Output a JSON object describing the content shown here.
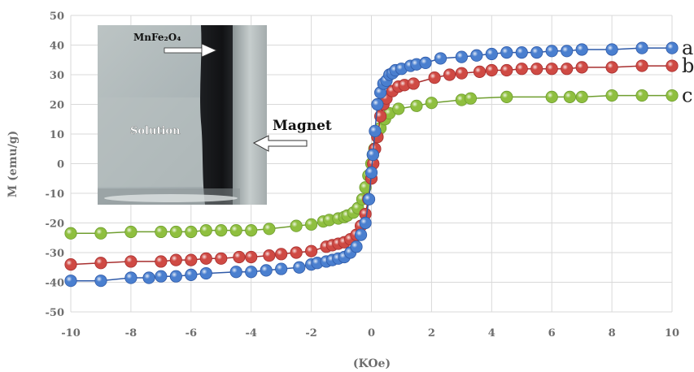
{
  "chart_data": {
    "type": "scatter",
    "xlabel": "(KOe)",
    "ylabel": "M (emu/g)",
    "xlim": [
      -10,
      10
    ],
    "ylim": [
      -50,
      50
    ],
    "xticks": [
      -10,
      -8,
      -6,
      -4,
      -2,
      0,
      2,
      4,
      6,
      8,
      10
    ],
    "yticks": [
      -50,
      -40,
      -30,
      -20,
      -10,
      0,
      10,
      20,
      30,
      40,
      50
    ],
    "grid": true,
    "series": [
      {
        "name": "a",
        "color": "#4a7fcf",
        "line_color": "#2f5aa8",
        "x": [
          -10,
          -9,
          -8,
          -7.4,
          -7,
          -6.5,
          -6,
          -5.5,
          -4.5,
          -4,
          -3.5,
          -3,
          -2.4,
          -2,
          -1.8,
          -1.5,
          -1.3,
          -1.1,
          -0.9,
          -0.7,
          -0.5,
          -0.35,
          -0.2,
          -0.08,
          0,
          0.05,
          0.12,
          0.2,
          0.3,
          0.4,
          0.5,
          0.6,
          0.7,
          0.8,
          1.0,
          1.3,
          1.5,
          1.8,
          2.3,
          3.0,
          3.5,
          4.0,
          4.5,
          5.0,
          5.5,
          6.0,
          6.5,
          7.0,
          8.0,
          9.0,
          10
        ],
        "y": [
          -39.5,
          -39.5,
          -38.5,
          -38.5,
          -38,
          -38,
          -37.5,
          -37,
          -36.5,
          -36.5,
          -36,
          -35.5,
          -35,
          -34,
          -33.5,
          -33,
          -32.5,
          -32,
          -31.5,
          -30,
          -28,
          -24,
          -20,
          -12,
          -3,
          3,
          11,
          20,
          24,
          27,
          28,
          30,
          30.5,
          31.5,
          32,
          33,
          33.5,
          34,
          35.5,
          36,
          36.5,
          37,
          37.5,
          37.5,
          37.5,
          38,
          38,
          38.5,
          38.5,
          39,
          39
        ]
      },
      {
        "name": "b",
        "color": "#cf4a44",
        "line_color": "#a82f2f",
        "x": [
          -10,
          -9,
          -8,
          -7,
          -6.5,
          -6,
          -5.5,
          -5,
          -4.4,
          -4,
          -3.4,
          -3,
          -2.5,
          -2,
          -1.5,
          -1.3,
          -1.1,
          -0.9,
          -0.7,
          -0.5,
          -0.35,
          -0.2,
          -0.1,
          0,
          0.06,
          0.12,
          0.2,
          0.3,
          0.4,
          0.5,
          0.7,
          0.9,
          1.1,
          1.4,
          2.1,
          2.6,
          3.0,
          3.6,
          4.0,
          4.5,
          5.0,
          5.5,
          6.0,
          6.5,
          7.0,
          8.0,
          9.0,
          10
        ],
        "y": [
          -34,
          -33.5,
          -33,
          -33,
          -32.5,
          -32.5,
          -32,
          -32,
          -31.5,
          -31.5,
          -31,
          -30.5,
          -30,
          -29.5,
          -28,
          -27.5,
          -27,
          -26.5,
          -25.5,
          -24,
          -21,
          -17,
          -12,
          -5,
          0,
          5,
          9,
          16,
          20,
          22,
          24.5,
          26,
          26.5,
          27,
          29,
          30,
          30.5,
          31,
          31.5,
          31.5,
          32,
          32,
          32,
          32,
          32.5,
          32.5,
          33,
          33
        ]
      },
      {
        "name": "c",
        "color": "#8fbf3f",
        "line_color": "#6f9e2f",
        "x": [
          -10,
          -9,
          -8,
          -7,
          -6.5,
          -6,
          -5.5,
          -5,
          -4.5,
          -4,
          -3.4,
          -2.5,
          -2,
          -1.6,
          -1.4,
          -1.1,
          -0.9,
          -0.8,
          -0.6,
          -0.45,
          -0.3,
          -0.2,
          -0.1,
          0,
          0.05,
          0.1,
          0.2,
          0.3,
          0.45,
          0.6,
          0.9,
          1.5,
          2.0,
          3.0,
          3.3,
          4.5,
          6.0,
          6.6,
          7.0,
          8.0,
          9.0,
          10
        ],
        "y": [
          -23.5,
          -23.5,
          -23,
          -23,
          -23,
          -23,
          -22.5,
          -22.5,
          -22.5,
          -22.5,
          -22,
          -21,
          -20.5,
          -19.5,
          -19,
          -18.5,
          -18,
          -17.5,
          -16.5,
          -15,
          -12,
          -8,
          -4,
          0,
          3,
          5,
          9,
          12,
          15,
          17,
          18.5,
          19.5,
          20.5,
          21.5,
          22,
          22.5,
          22.5,
          22.5,
          22.5,
          23,
          23,
          23
        ]
      }
    ]
  },
  "inset": {
    "material_label": "MnFe₂O₄",
    "solution_label": "Solution",
    "magnet_label": "Magnet"
  }
}
